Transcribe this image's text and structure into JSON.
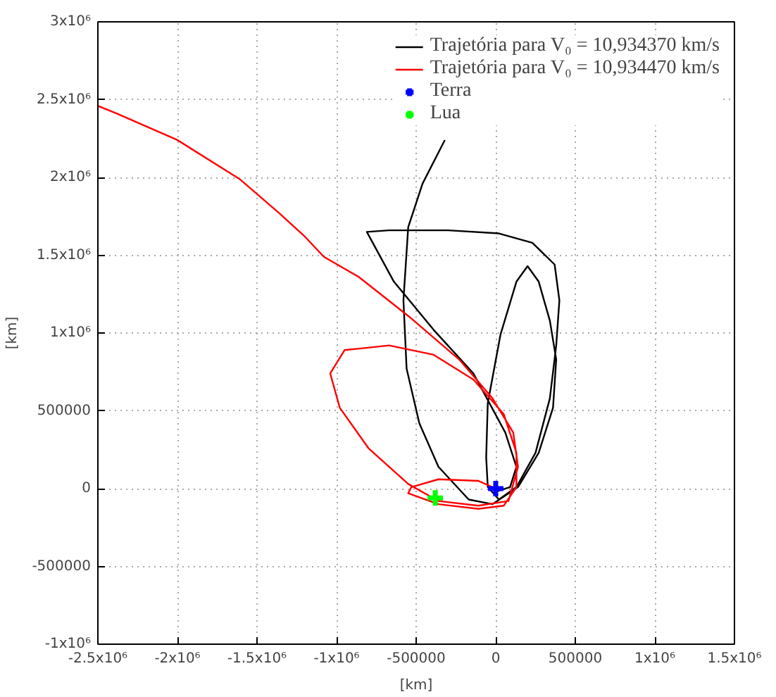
{
  "chart_data": {
    "type": "line",
    "xlabel": "[km]",
    "ylabel": "[km]",
    "xlim": [
      -2500000,
      1500000
    ],
    "ylim": [
      -1000000,
      3000000
    ],
    "xticks": [
      {
        "value": -2500000,
        "label": "-2.5x10⁶"
      },
      {
        "value": -2000000,
        "label": "-2x10⁶"
      },
      {
        "value": -1500000,
        "label": "-1.5x10⁶"
      },
      {
        "value": -1000000,
        "label": "-1x10⁶"
      },
      -500000,
      0,
      500000,
      {
        "value": 1000000,
        "label": "1x10⁶"
      },
      {
        "value": 1500000,
        "label": "1.5x10⁶"
      }
    ],
    "yticks": [
      {
        "value": -1000000,
        "label": "-1x10⁶"
      },
      -500000,
      0,
      500000,
      {
        "value": 1000000,
        "label": "1x10⁶"
      },
      {
        "value": 1500000,
        "label": "1.5x10⁶"
      },
      {
        "value": 2000000,
        "label": "2x10⁶"
      },
      {
        "value": 2500000,
        "label": "2.5x10⁶"
      },
      {
        "value": 3000000,
        "label": "3x10⁶"
      }
    ],
    "grid": true,
    "legend": "top right",
    "line_style": "solid",
    "series": [
      {
        "name": "Trajetória para V₀ = 10,934370 km/s",
        "color": "#000000",
        "x": [
          0,
          90000,
          130000,
          60000,
          -140000,
          -390000,
          -640000,
          -810000,
          -670000,
          -300000,
          20000,
          230000,
          370000,
          400000,
          380000,
          340000,
          250000,
          130000,
          20000,
          -50000,
          -60000,
          -50000,
          30000,
          130000,
          200000,
          270000,
          340000,
          380000,
          360000,
          270000,
          140000,
          -20000,
          -170000,
          -360000,
          -480000,
          -560000,
          -580000,
          -550000,
          -460000,
          -320000
        ],
        "values": [
          -20000,
          10000,
          140000,
          360000,
          740000,
          1020000,
          1330000,
          1650000,
          1660000,
          1660000,
          1640000,
          1580000,
          1440000,
          1210000,
          920000,
          580000,
          230000,
          10000,
          -70000,
          10000,
          200000,
          550000,
          990000,
          1330000,
          1430000,
          1330000,
          1080000,
          830000,
          520000,
          230000,
          10000,
          -100000,
          -70000,
          140000,
          420000,
          770000,
          1210000,
          1680000,
          1960000,
          2240000
        ]
      },
      {
        "name": "Trajetória para V₀ = 10,934470 km/s",
        "color": "#ff0000",
        "x": [
          0,
          -110000,
          -360000,
          -530000,
          -550000,
          -360000,
          -110000,
          50000,
          130000,
          130000,
          50000,
          -140000,
          -390000,
          -670000,
          -950000,
          -1040000,
          -980000,
          -800000,
          -550000,
          -360000,
          -110000,
          80000,
          140000,
          110000,
          -20000,
          -230000,
          -550000,
          -860000,
          -1080000,
          -1200000,
          -1360000,
          -1610000,
          -2000000,
          -2380000,
          -2500000
        ],
        "values": [
          0,
          50000,
          60000,
          10000,
          -30000,
          -100000,
          -130000,
          -110000,
          10000,
          230000,
          480000,
          700000,
          860000,
          920000,
          890000,
          740000,
          520000,
          260000,
          30000,
          -80000,
          -110000,
          -80000,
          140000,
          360000,
          580000,
          830000,
          1110000,
          1360000,
          1490000,
          1620000,
          1770000,
          1990000,
          2240000,
          2410000,
          2460000
        ]
      },
      {
        "name": "Terra",
        "type": "scatter",
        "marker": "cross",
        "color": "#0000ff",
        "x": [
          0
        ],
        "values": [
          0
        ]
      },
      {
        "name": "Lua",
        "type": "scatter",
        "marker": "cross",
        "color": "#00ff00",
        "x": [
          -380000
        ],
        "values": [
          -60000
        ]
      }
    ]
  }
}
